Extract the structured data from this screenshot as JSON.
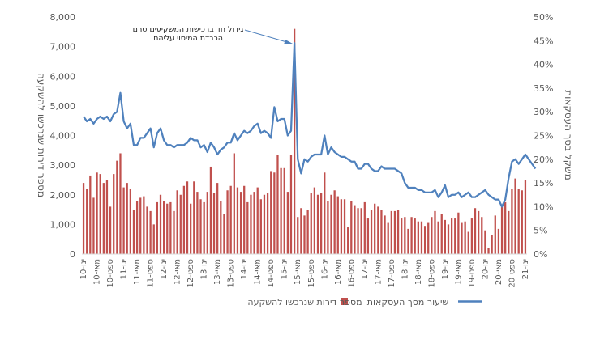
{
  "chart_data": {
    "type": "bar",
    "x_tick_labels": [
      "ינו-10",
      "מאי-10",
      "ספט-10",
      "ינו-11",
      "מאי-11",
      "ספט-11",
      "ינו-12",
      "מאי-12",
      "ספט-12",
      "ינו-13",
      "מאי-13",
      "ספט-13",
      "ינו-14",
      "מאי-14",
      "ספט-14",
      "ינו-15",
      "מאי-15",
      "ספט-15",
      "ינו-16",
      "מאי-16",
      "ספט-16",
      "ינו-17",
      "מאי-17",
      "ספט-17",
      "ינו-18",
      "מאי-18",
      "ספט-18",
      "ינו-19",
      "מאי-19",
      "ספט-19",
      "ינו-20",
      "מאי-20",
      "ספט-20",
      "ינו-21"
    ],
    "ylabel_left": "מספר דירות שנרכשו להשקעה",
    "ylabel_right": "משקל בסך העסקאות",
    "y_left_ticks": [
      "0",
      "1,000",
      "2,000",
      "3,000",
      "4,000",
      "5,000",
      "6,000",
      "7,000",
      "8,000"
    ],
    "y_right_ticks": [
      "0%",
      "5%",
      "10%",
      "15%",
      "20%",
      "25%",
      "30%",
      "35%",
      "40%",
      "45%",
      "50%"
    ],
    "ylim_left": [
      0,
      8000
    ],
    "ylim_right": [
      0,
      0.5
    ],
    "grid": false,
    "legend_position": "bottom",
    "series": [
      {
        "name": "מספר דירות שנרכשו להשקעה",
        "type": "bar",
        "axis": "left",
        "color": "#C0504D",
        "values": [
          2400,
          2200,
          2650,
          1900,
          2750,
          2700,
          2400,
          2500,
          1600,
          2700,
          3150,
          3400,
          2250,
          2400,
          2200,
          1500,
          1800,
          1900,
          1950,
          1600,
          1450,
          1000,
          1750,
          2000,
          1800,
          1700,
          1750,
          1450,
          2150,
          2000,
          2300,
          2450,
          1700,
          2450,
          2100,
          1850,
          1750,
          2100,
          2950,
          2050,
          2400,
          1800,
          1350,
          2150,
          2300,
          3400,
          2250,
          2100,
          2300,
          1750,
          2000,
          2100,
          2250,
          1850,
          2000,
          2050,
          2800,
          2750,
          3350,
          2900,
          2900,
          2100,
          3350,
          7600,
          1250,
          1550,
          1300,
          1500,
          2050,
          2250,
          2000,
          2050,
          2750,
          1800,
          2000,
          2150,
          1950,
          1850,
          1850,
          900,
          1800,
          1650,
          1550,
          1550,
          1750,
          1200,
          1500,
          1700,
          1600,
          1500,
          1300,
          1050,
          1450,
          1450,
          1500,
          1200,
          1250,
          850,
          1250,
          1200,
          1100,
          1100,
          950,
          1050,
          1250,
          1450,
          1100,
          1350,
          1150,
          1000,
          1200,
          1200,
          1400,
          1050,
          1100,
          750,
          1200,
          1550,
          1450,
          1250,
          800,
          200,
          650,
          1300,
          850,
          1600,
          1750,
          1450,
          2200,
          2550,
          2200,
          2150,
          2500
        ]
      },
      {
        "name": "שיעור מסך העסקאות",
        "type": "line",
        "axis": "right",
        "color": "#4F81BD",
        "values": [
          0.29,
          0.28,
          0.285,
          0.275,
          0.285,
          0.29,
          0.285,
          0.29,
          0.28,
          0.295,
          0.3,
          0.34,
          0.28,
          0.265,
          0.275,
          0.23,
          0.23,
          0.245,
          0.245,
          0.255,
          0.265,
          0.225,
          0.255,
          0.265,
          0.24,
          0.23,
          0.23,
          0.225,
          0.23,
          0.23,
          0.23,
          0.235,
          0.245,
          0.24,
          0.24,
          0.225,
          0.23,
          0.215,
          0.235,
          0.225,
          0.21,
          0.22,
          0.225,
          0.235,
          0.235,
          0.255,
          0.24,
          0.25,
          0.26,
          0.255,
          0.26,
          0.27,
          0.275,
          0.255,
          0.26,
          0.255,
          0.245,
          0.31,
          0.28,
          0.285,
          0.285,
          0.25,
          0.26,
          0.445,
          0.2,
          0.17,
          0.2,
          0.195,
          0.205,
          0.21,
          0.21,
          0.21,
          0.25,
          0.21,
          0.225,
          0.215,
          0.21,
          0.205,
          0.205,
          0.2,
          0.195,
          0.195,
          0.18,
          0.18,
          0.19,
          0.19,
          0.18,
          0.175,
          0.175,
          0.185,
          0.18,
          0.18,
          0.18,
          0.18,
          0.175,
          0.17,
          0.15,
          0.14,
          0.14,
          0.14,
          0.135,
          0.135,
          0.13,
          0.13,
          0.13,
          0.135,
          0.12,
          0.13,
          0.145,
          0.12,
          0.125,
          0.125,
          0.13,
          0.12,
          0.125,
          0.13,
          0.12,
          0.12,
          0.125,
          0.13,
          0.135,
          0.125,
          0.12,
          0.115,
          0.115,
          0.1,
          0.115,
          0.16,
          0.195,
          0.2,
          0.19,
          0.2,
          0.21,
          0.2,
          0.19,
          0.18
        ]
      }
    ],
    "annotation": {
      "text_line1": "גידול חד ברכישות המשקיעים טרם",
      "text_line2": "הכבדת המיסוי עליהם"
    }
  }
}
